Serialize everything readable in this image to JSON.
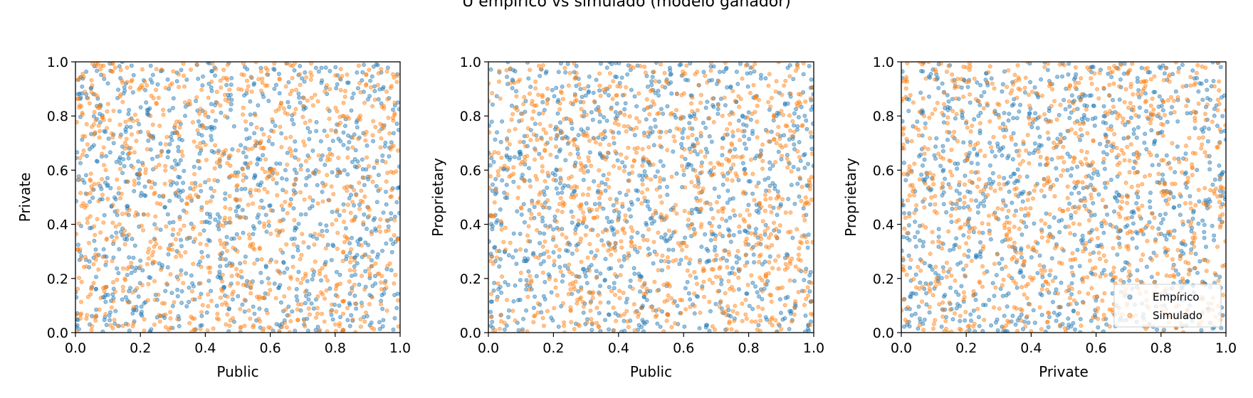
{
  "figure": {
    "title": "U empírico vs simulado (modelo ganador)"
  },
  "chart_data": [
    {
      "type": "scatter",
      "xlabel": "Public",
      "ylabel": "Private",
      "xlim": [
        0,
        1
      ],
      "ylim": [
        0,
        1
      ],
      "xticks": [
        "0.0",
        "0.2",
        "0.4",
        "0.6",
        "0.8",
        "1.0"
      ],
      "yticks": [
        "0.0",
        "0.2",
        "0.4",
        "0.6",
        "0.8",
        "1.0"
      ],
      "grid": false,
      "series": [
        {
          "name": "Empírico",
          "color": "#1f77b4",
          "n_points": 1000,
          "distribution": "uniform-copula",
          "seed": 11
        },
        {
          "name": "Simulado",
          "color": "#ff7f0e",
          "n_points": 1000,
          "distribution": "uniform-copula",
          "seed": 23
        }
      ]
    },
    {
      "type": "scatter",
      "xlabel": "Public",
      "ylabel": "Proprietary",
      "xlim": [
        0,
        1
      ],
      "ylim": [
        0,
        1
      ],
      "xticks": [
        "0.0",
        "0.2",
        "0.4",
        "0.6",
        "0.8",
        "1.0"
      ],
      "yticks": [
        "0.0",
        "0.2",
        "0.4",
        "0.6",
        "0.8",
        "1.0"
      ],
      "grid": false,
      "series": [
        {
          "name": "Empírico",
          "color": "#1f77b4",
          "n_points": 1000,
          "distribution": "uniform-copula",
          "seed": 37
        },
        {
          "name": "Simulado",
          "color": "#ff7f0e",
          "n_points": 1000,
          "distribution": "uniform-copula",
          "seed": 41
        }
      ]
    },
    {
      "type": "scatter",
      "xlabel": "Private",
      "ylabel": "Proprietary",
      "xlim": [
        0,
        1
      ],
      "ylim": [
        0,
        1
      ],
      "xticks": [
        "0.0",
        "0.2",
        "0.4",
        "0.6",
        "0.8",
        "1.0"
      ],
      "yticks": [
        "0.0",
        "0.2",
        "0.4",
        "0.6",
        "0.8",
        "1.0"
      ],
      "grid": false,
      "legend": {
        "placement": "lower-right",
        "entries": [
          "Empírico",
          "Simulado"
        ]
      },
      "series": [
        {
          "name": "Empírico",
          "color": "#1f77b4",
          "n_points": 1000,
          "distribution": "uniform-copula",
          "seed": 53
        },
        {
          "name": "Simulado",
          "color": "#ff7f0e",
          "n_points": 1000,
          "distribution": "uniform-copula",
          "seed": 67
        }
      ]
    }
  ]
}
